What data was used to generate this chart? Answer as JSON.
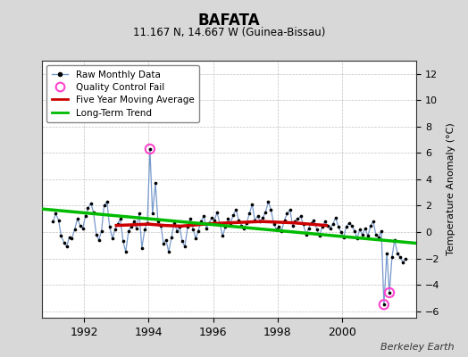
{
  "title": "BAFATA",
  "subtitle": "11.167 N, 14.667 W (Guinea-Bissau)",
  "ylabel": "Temperature Anomaly (°C)",
  "credit": "Berkeley Earth",
  "background_color": "#d8d8d8",
  "plot_bg_color": "#ffffff",
  "ylim": [
    -6.5,
    13.0
  ],
  "yticks": [
    -6,
    -4,
    -2,
    0,
    2,
    4,
    6,
    8,
    10,
    12
  ],
  "xlim_start": 1990.7,
  "xlim_end": 2002.3,
  "xticks": [
    1992,
    1994,
    1996,
    1998,
    2000
  ],
  "raw_times": [
    1991.04,
    1991.12,
    1991.21,
    1991.29,
    1991.38,
    1991.46,
    1991.54,
    1991.62,
    1991.71,
    1991.79,
    1991.88,
    1991.96,
    1992.04,
    1992.12,
    1992.21,
    1992.29,
    1992.38,
    1992.46,
    1992.54,
    1992.62,
    1992.71,
    1992.79,
    1992.88,
    1992.96,
    1993.04,
    1993.12,
    1993.21,
    1993.29,
    1993.38,
    1993.46,
    1993.54,
    1993.62,
    1993.71,
    1993.79,
    1993.88,
    1993.96,
    1994.04,
    1994.12,
    1994.21,
    1994.29,
    1994.38,
    1994.46,
    1994.54,
    1994.62,
    1994.71,
    1994.79,
    1994.88,
    1994.96,
    1995.04,
    1995.12,
    1995.21,
    1995.29,
    1995.38,
    1995.46,
    1995.54,
    1995.62,
    1995.71,
    1995.79,
    1995.88,
    1995.96,
    1996.04,
    1996.12,
    1996.21,
    1996.29,
    1996.38,
    1996.46,
    1996.54,
    1996.62,
    1996.71,
    1996.79,
    1996.88,
    1996.96,
    1997.04,
    1997.12,
    1997.21,
    1997.29,
    1997.38,
    1997.46,
    1997.54,
    1997.62,
    1997.71,
    1997.79,
    1997.88,
    1997.96,
    1998.04,
    1998.12,
    1998.21,
    1998.29,
    1998.38,
    1998.46,
    1998.54,
    1998.62,
    1998.71,
    1998.79,
    1998.88,
    1998.96,
    1999.04,
    1999.12,
    1999.21,
    1999.29,
    1999.38,
    1999.46,
    1999.54,
    1999.62,
    1999.71,
    1999.79,
    1999.88,
    1999.96,
    2000.04,
    2000.12,
    2000.21,
    2000.29,
    2000.38,
    2000.46,
    2000.54,
    2000.62,
    2000.71,
    2000.79,
    2000.88,
    2000.96,
    2001.04,
    2001.12,
    2001.21,
    2001.29,
    2001.38,
    2001.46,
    2001.54,
    2001.62,
    2001.71,
    2001.79,
    2001.88,
    2001.96
  ],
  "raw_values": [
    0.8,
    1.4,
    0.9,
    -0.3,
    -0.8,
    -1.1,
    -0.4,
    -0.5,
    0.2,
    1.0,
    0.5,
    0.3,
    1.2,
    1.8,
    2.2,
    1.5,
    -0.2,
    -0.6,
    0.1,
    2.0,
    2.3,
    0.4,
    -0.5,
    0.2,
    0.6,
    1.0,
    -0.7,
    -1.5,
    0.1,
    0.4,
    0.8,
    0.3,
    1.4,
    -1.2,
    0.2,
    0.7,
    6.3,
    1.4,
    3.7,
    0.8,
    0.5,
    -0.9,
    -0.6,
    -1.5,
    -0.4,
    0.7,
    0.1,
    0.4,
    -0.7,
    -1.1,
    0.4,
    1.0,
    0.2,
    -0.5,
    0.1,
    0.8,
    1.2,
    0.3,
    0.7,
    1.1,
    0.9,
    1.5,
    0.6,
    -0.3,
    0.4,
    1.0,
    0.7,
    1.3,
    1.7,
    0.9,
    0.5,
    0.3,
    0.7,
    1.4,
    2.1,
    0.9,
    1.2,
    0.8,
    1.1,
    1.5,
    2.3,
    1.7,
    0.6,
    0.2,
    0.4,
    0.1,
    0.9,
    1.4,
    1.7,
    0.5,
    0.8,
    1.0,
    1.2,
    0.6,
    -0.2,
    0.3,
    0.7,
    0.9,
    0.2,
    -0.3,
    0.4,
    0.8,
    0.5,
    0.3,
    0.6,
    1.1,
    0.4,
    0.0,
    -0.4,
    0.4,
    0.7,
    0.5,
    0.1,
    -0.5,
    0.2,
    -0.2,
    0.3,
    -0.3,
    0.5,
    0.8,
    -0.2,
    -0.4,
    0.1,
    -5.5,
    -1.6,
    -4.6,
    -1.9,
    -0.6,
    -1.6,
    -1.9,
    -2.3,
    -2.0
  ],
  "qc_times": [
    1994.04,
    2001.29,
    2001.46
  ],
  "qc_values": [
    6.3,
    -5.5,
    -4.6
  ],
  "ma_times": [
    1993.0,
    1993.5,
    1994.0,
    1994.5,
    1995.0,
    1995.5,
    1996.0,
    1996.5,
    1997.0,
    1997.5,
    1998.0,
    1998.5,
    1999.0,
    1999.5
  ],
  "ma_values": [
    0.5,
    0.55,
    0.6,
    0.5,
    0.45,
    0.55,
    0.65,
    0.7,
    0.75,
    0.8,
    0.75,
    0.7,
    0.6,
    0.5
  ],
  "trend_times": [
    1990.7,
    2002.3
  ],
  "trend_values": [
    1.75,
    -0.85
  ],
  "line_color": "#7799cc",
  "dot_color": "#000000",
  "qc_color": "#ff44cc",
  "ma_color": "#cc0000",
  "trend_color": "#00bb00"
}
